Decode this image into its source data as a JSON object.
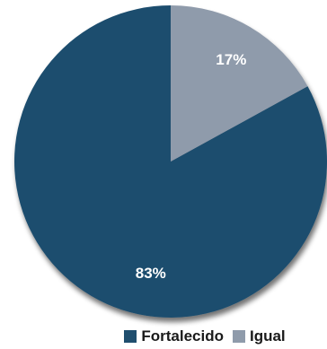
{
  "chart_data": {
    "type": "pie",
    "categories": [
      "Fortalecido",
      "Igual"
    ],
    "values": [
      83,
      17
    ],
    "data_labels": [
      "83%",
      "17%"
    ],
    "colors": [
      "#1f4e6e",
      "#8f9bab"
    ],
    "title": "",
    "legend_position": "bottom",
    "start_angle": "12 o'clock",
    "direction": "counterclockwise"
  }
}
